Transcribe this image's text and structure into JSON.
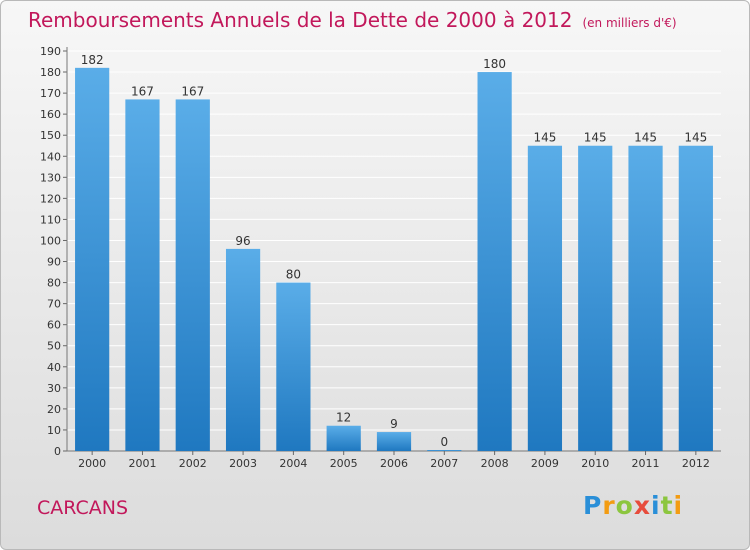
{
  "title": "Remboursements Annuels de la Dette de 2000 à 2012",
  "subtitle": "(en milliers d'€)",
  "town": "CARCANS",
  "logo": {
    "letters": [
      "P",
      "r",
      "o",
      "x",
      "i",
      "t",
      "i"
    ],
    "colors": [
      "#2a8fd8",
      "#f39c12",
      "#8cc63f",
      "#e74c3c",
      "#2a8fd8",
      "#8cc63f",
      "#f39c12"
    ]
  },
  "colors": {
    "bar_top": "#5aade8",
    "bar_bottom": "#1f78c0",
    "title": "#c2185b",
    "grid": "#ffffff"
  },
  "chart_data": {
    "type": "bar",
    "categories": [
      "2000",
      "2001",
      "2002",
      "2003",
      "2004",
      "2005",
      "2006",
      "2007",
      "2008",
      "2009",
      "2010",
      "2011",
      "2012"
    ],
    "values": [
      182,
      167,
      167,
      96,
      80,
      12,
      9,
      0,
      180,
      145,
      145,
      145,
      145
    ],
    "title": "Remboursements Annuels de la Dette de 2000 à 2012",
    "subtitle": "(en milliers d'€)",
    "xlabel": "",
    "ylabel": "",
    "ylim": [
      0,
      190
    ],
    "ytick_step": 10,
    "grid": true,
    "data_labels": true
  }
}
